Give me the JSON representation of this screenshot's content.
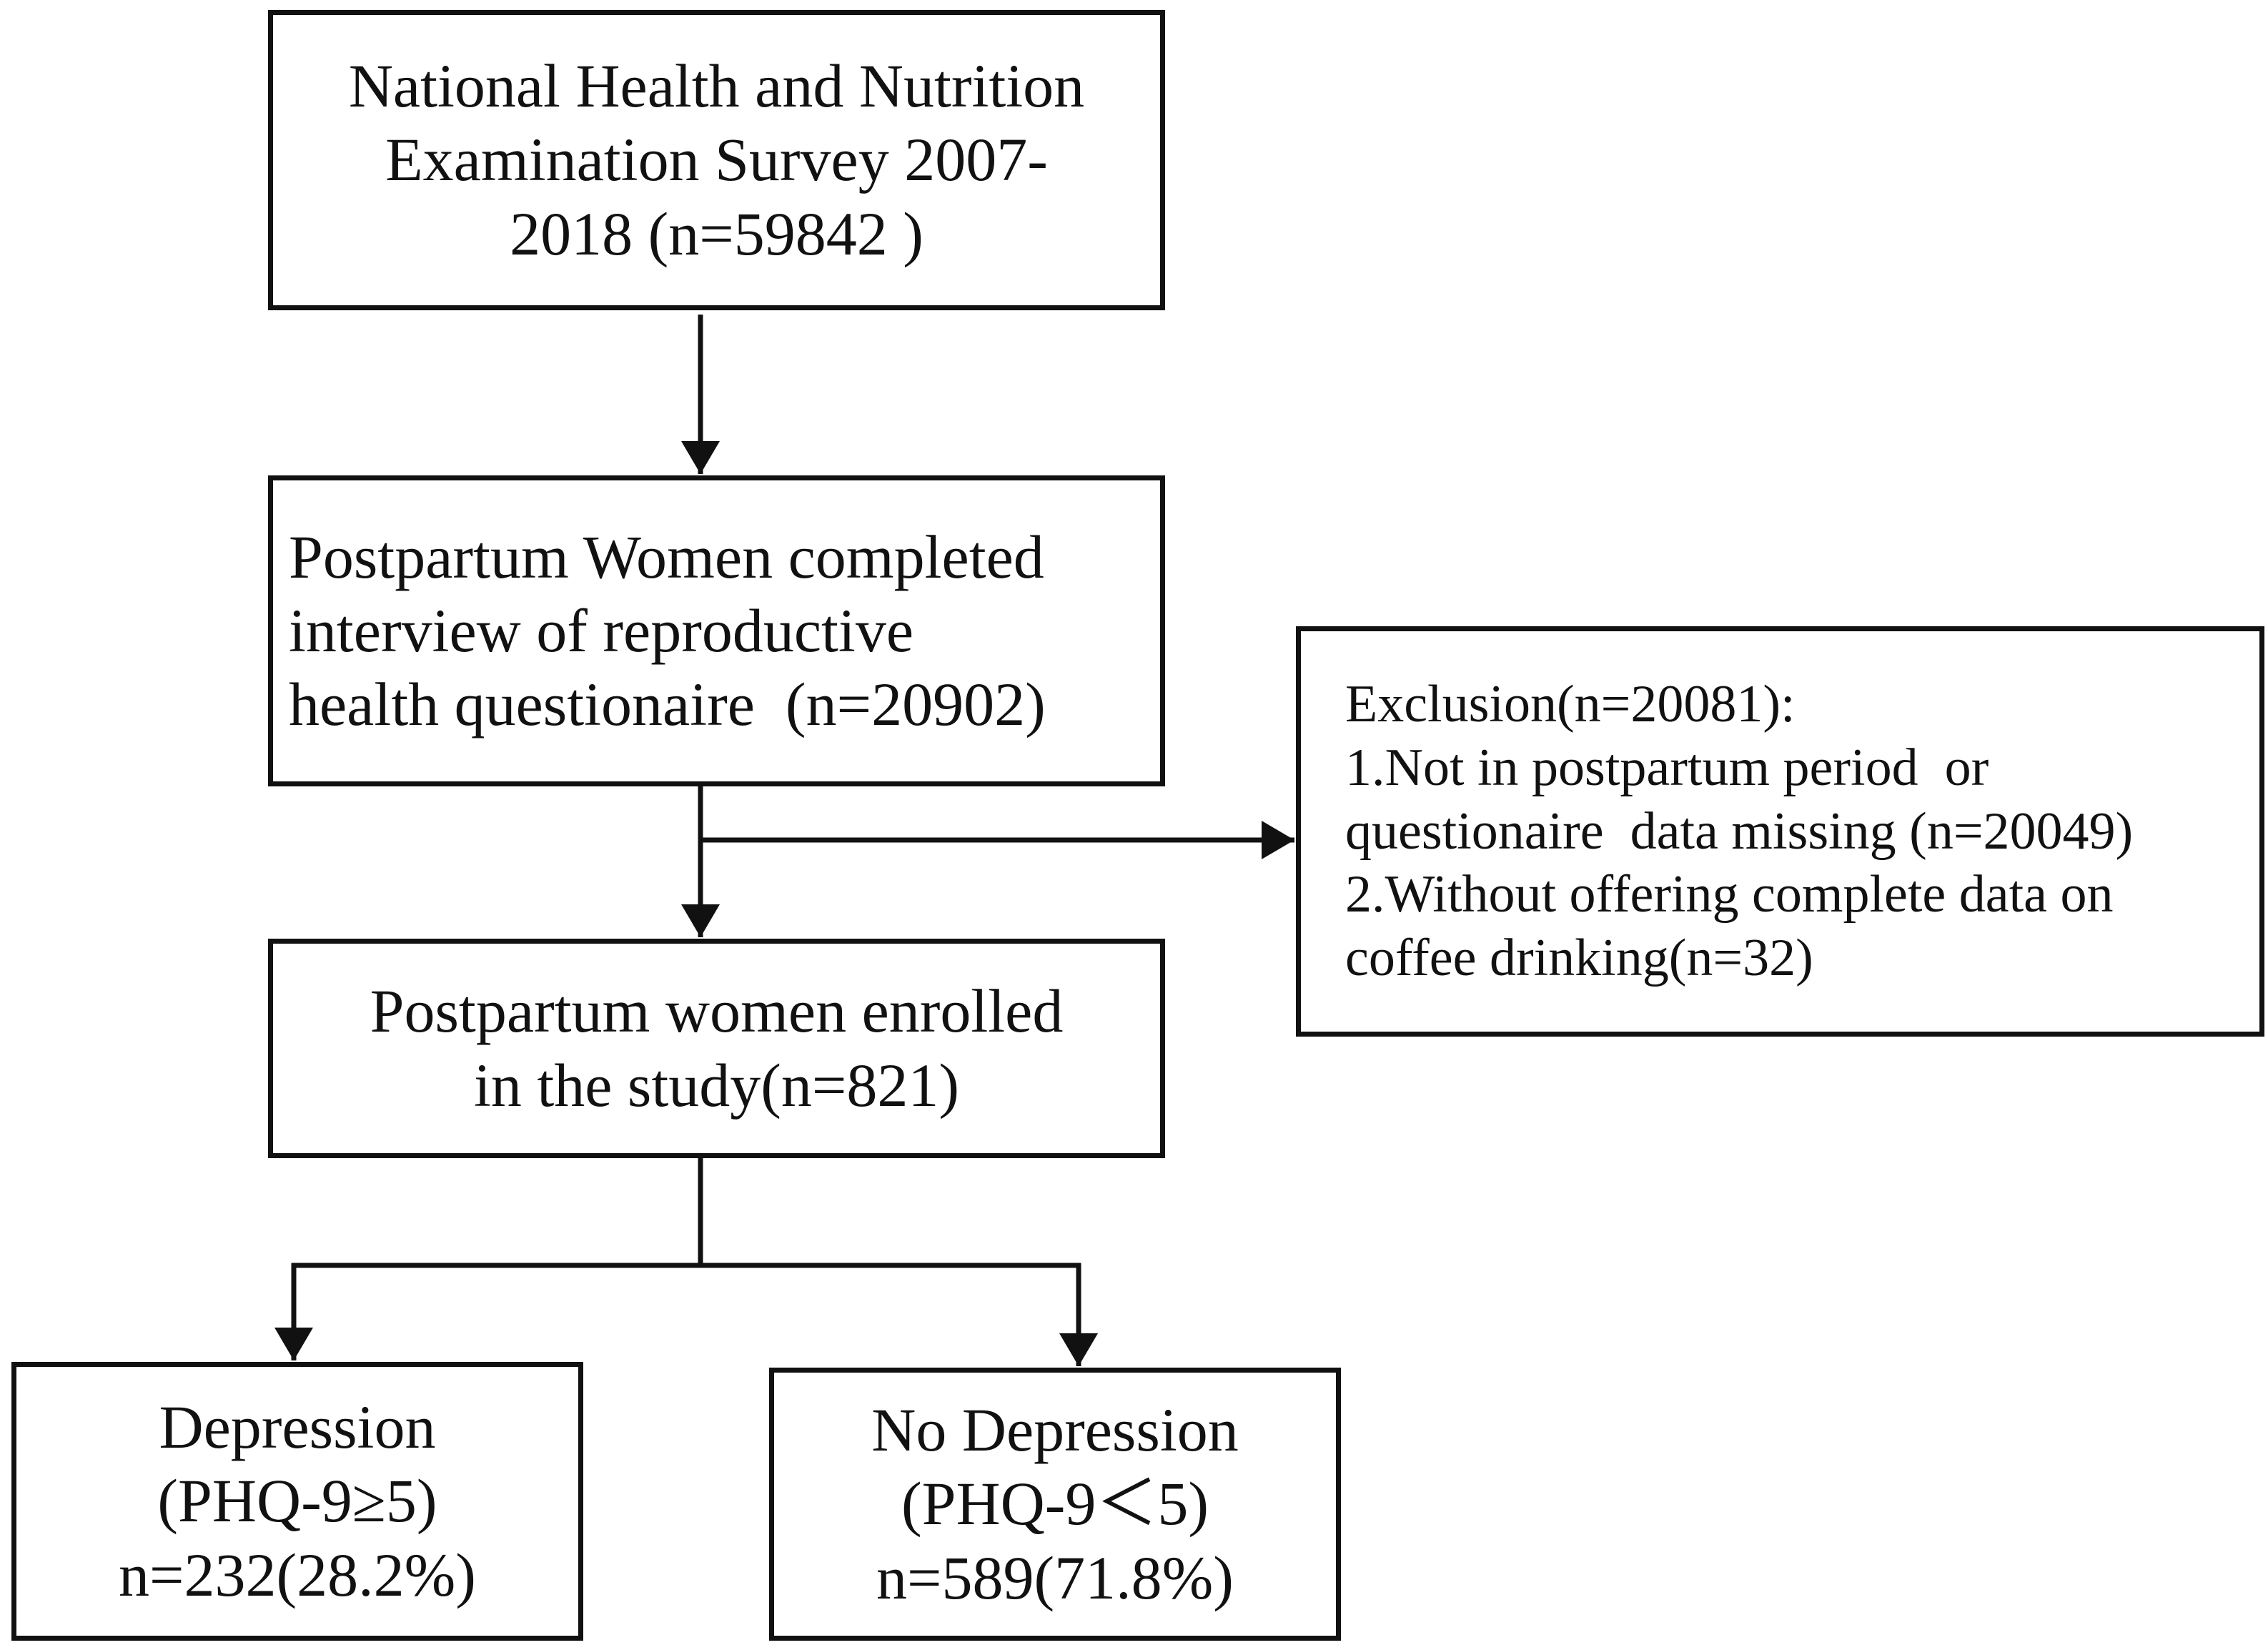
{
  "diagram": {
    "nodes": {
      "source": {
        "lines": [
          "National Health and Nutrition",
          "Examination Survey 2007-",
          "2018 (n=59842 )"
        ]
      },
      "completed": {
        "lines": [
          "Postpartum Women completed",
          "interview of reproductive",
          "health questionaire  (n=20902)"
        ]
      },
      "exclusion": {
        "lines": [
          "Exclusion(n=20081):",
          "1.Not in postpartum period  or",
          "questionaire  data missing (n=20049)",
          "2.Without offering complete data on",
          "coffee drinking(n=32)"
        ]
      },
      "enrolled": {
        "lines": [
          "Postpartum women enrolled",
          "in the study(n=821)"
        ]
      },
      "depression": {
        "lines": [
          "Depression",
          "(PHQ-9≥5)",
          "n=232(28.2%)"
        ]
      },
      "no_depression": {
        "lines": [
          "No Depression",
          "(PHQ-9＜5)",
          "n=589(71.8%)"
        ]
      }
    },
    "edges": [
      {
        "from": "source",
        "to": "completed"
      },
      {
        "from": "completed",
        "to": "enrolled"
      },
      {
        "from": "completed",
        "to": "exclusion"
      },
      {
        "from": "enrolled",
        "to": "depression"
      },
      {
        "from": "enrolled",
        "to": "no_depression"
      }
    ],
    "colors": {
      "stroke": "#111111",
      "text": "#111111",
      "background": "#ffffff"
    }
  }
}
